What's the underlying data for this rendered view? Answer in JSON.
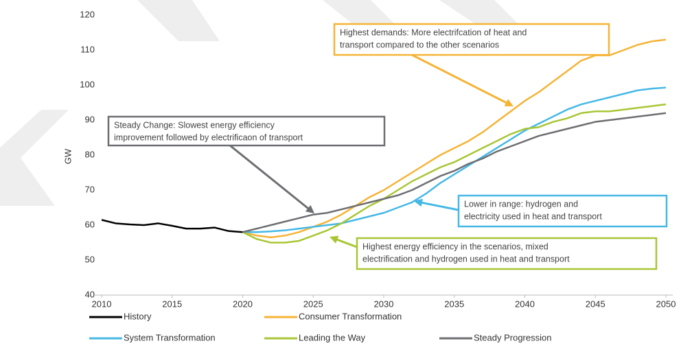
{
  "chart_data": {
    "type": "line",
    "y_label": "GW",
    "x": [
      2010,
      2011,
      2012,
      2013,
      2014,
      2015,
      2016,
      2017,
      2018,
      2019,
      2020,
      2021,
      2022,
      2023,
      2024,
      2025,
      2026,
      2027,
      2028,
      2029,
      2030,
      2031,
      2032,
      2033,
      2034,
      2035,
      2036,
      2037,
      2038,
      2039,
      2040,
      2041,
      2042,
      2043,
      2044,
      2045,
      2046,
      2047,
      2048,
      2049,
      2050
    ],
    "xlim": [
      2010,
      2050
    ],
    "xticks": [
      2010,
      2015,
      2020,
      2025,
      2030,
      2035,
      2040,
      2045,
      2050
    ],
    "ylim": [
      40,
      120
    ],
    "yticks": [
      40,
      50,
      60,
      70,
      80,
      90,
      100,
      110,
      120
    ],
    "series": [
      {
        "name": "History",
        "color": "#000000",
        "values": [
          61.5,
          60.5,
          60.2,
          60,
          60.5,
          59.8,
          59,
          59,
          59.3,
          58.3,
          58,
          null,
          null,
          null,
          null,
          null,
          null,
          null,
          null,
          null,
          null,
          null,
          null,
          null,
          null,
          null,
          null,
          null,
          null,
          null,
          null,
          null,
          null,
          null,
          null,
          null,
          null,
          null,
          null,
          null,
          null
        ]
      },
      {
        "name": "Consumer Transformation",
        "color": "#f5b335",
        "values": [
          null,
          null,
          null,
          null,
          null,
          null,
          null,
          null,
          null,
          null,
          58,
          57,
          56.5,
          57,
          58,
          59.5,
          61,
          63,
          65.5,
          68,
          70,
          72.5,
          75,
          77.5,
          80,
          82,
          84,
          86.5,
          89.5,
          92.5,
          95.5,
          98,
          101,
          104,
          107,
          108.5,
          108.5,
          110,
          111.5,
          112.5,
          113
        ]
      },
      {
        "name": "System Transformation",
        "color": "#45b8e6",
        "values": [
          null,
          null,
          null,
          null,
          null,
          null,
          null,
          null,
          null,
          null,
          58,
          58,
          58.2,
          58.5,
          59,
          59.5,
          60,
          60.5,
          61.5,
          62.5,
          63.5,
          65,
          66.5,
          69,
          72,
          74.5,
          77,
          79.5,
          82,
          84.5,
          87,
          89,
          91,
          93,
          94.5,
          95.5,
          96.5,
          97.5,
          98.5,
          99,
          99.3
        ]
      },
      {
        "name": "Leading the Way",
        "color": "#a8c634",
        "values": [
          null,
          null,
          null,
          null,
          null,
          null,
          null,
          null,
          null,
          null,
          58,
          56,
          55,
          55,
          55.5,
          57,
          58.5,
          60.5,
          63,
          65.5,
          67.5,
          70,
          72.5,
          74.5,
          76.5,
          78,
          80,
          82,
          84,
          86,
          87.5,
          88,
          89.5,
          90.5,
          92,
          92.5,
          92.5,
          93,
          93.5,
          94,
          94.5
        ]
      },
      {
        "name": "Steady Progression",
        "color": "#6d6e71",
        "values": [
          null,
          null,
          null,
          null,
          null,
          null,
          null,
          null,
          null,
          null,
          58,
          59,
          60,
          61,
          62,
          63,
          63.5,
          64.5,
          65.5,
          66.5,
          67.5,
          68.5,
          70,
          72,
          74,
          75.5,
          77.5,
          79,
          81,
          82.5,
          84,
          85.5,
          86.5,
          87.5,
          88.5,
          89.5,
          90,
          90.5,
          91,
          91.5,
          92
        ]
      }
    ],
    "annotations": [
      {
        "lines": [
          "Highest demands: More electrifcation of heat and",
          "transport compared to the other scenarios"
        ],
        "color": "#f5b335"
      },
      {
        "lines": [
          "Steady Change: Slowest energy efficiency",
          "improvement followed by electrificaon of transport"
        ],
        "color": "#6d6e71"
      },
      {
        "lines": [
          "Lower in range: hydrogen and",
          "electricity used in heat and transport"
        ],
        "color": "#45b8e6"
      },
      {
        "lines": [
          "Highest energy efficiency in the scenarios, mixed",
          "electrification and hydrogen used in heat and transport"
        ],
        "color": "#a8c634"
      }
    ]
  }
}
